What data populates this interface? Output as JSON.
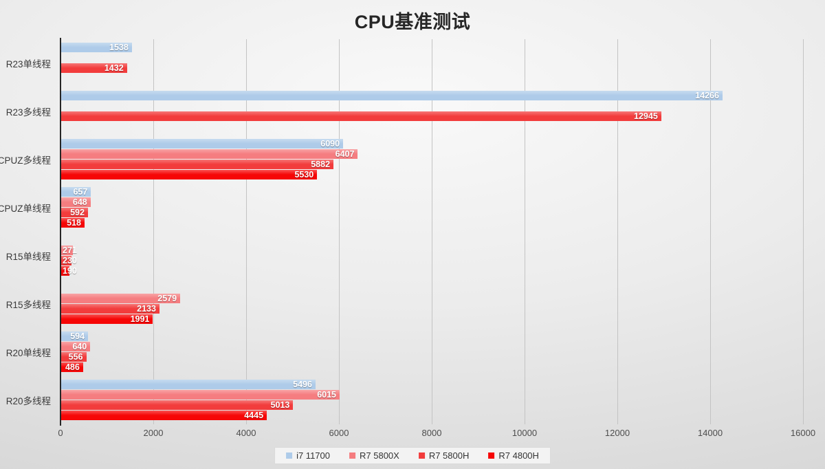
{
  "chart_data": {
    "type": "bar",
    "orientation": "horizontal",
    "title": "CPU基准测试",
    "categories": [
      "R23单线程",
      "R23多线程",
      "CPUZ多线程",
      "CPUZ单线程",
      "R15单线程",
      "R15多线程",
      "R20单线程",
      "R20多线程"
    ],
    "series": [
      {
        "name": "i7 11700",
        "color": "#AECBE9",
        "values": [
          1538,
          14266,
          6090,
          657,
          null,
          null,
          594,
          5496
        ]
      },
      {
        "name": "R7 5800X",
        "color": "#F57D80",
        "values": [
          null,
          null,
          6407,
          648,
          271,
          2579,
          640,
          6015
        ]
      },
      {
        "name": "R7 5800H",
        "color": "#F23C3C",
        "values": [
          1432,
          12945,
          5882,
          592,
          230,
          2133,
          556,
          5013
        ]
      },
      {
        "name": "R7 4800H",
        "color": "#F60606",
        "values": [
          null,
          null,
          5530,
          518,
          190,
          1991,
          486,
          4445
        ]
      }
    ],
    "xlim": [
      0,
      16000
    ],
    "x_ticks": [
      0,
      2000,
      4000,
      6000,
      8000,
      10000,
      12000,
      14000,
      16000
    ],
    "grid": true,
    "legend_position": "bottom",
    "value_labels": "inside-end-white-bold"
  }
}
